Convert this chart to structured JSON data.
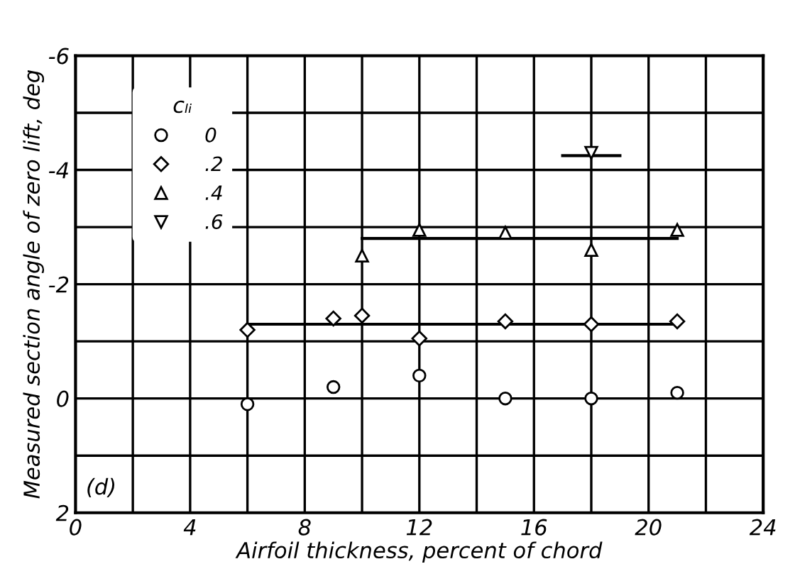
{
  "chart_data": {
    "type": "scatter",
    "xlabel": "Airfoil thickness, percent of chord",
    "ylabel": "Measured section angle of zero lift, deg",
    "legend_title": "cₗᵢ",
    "series": [
      {
        "name": "0",
        "color": "#000000",
        "marker": "circle",
        "x": [
          6,
          9,
          12,
          15,
          18,
          21
        ],
        "values": [
          0.1,
          -0.2,
          -0.4,
          0,
          0,
          -0.1
        ]
      },
      {
        "name": ".2",
        "color": "#000000",
        "marker": "diamond",
        "x": [
          6,
          9,
          10,
          12,
          15,
          18,
          21
        ],
        "values": [
          -1.2,
          -1.4,
          -1.45,
          -1.05,
          -1.35,
          -1.3,
          -1.35
        ]
      },
      {
        "name": ".4",
        "color": "#000000",
        "marker": "triangle",
        "x": [
          10,
          12,
          15,
          18,
          21
        ],
        "values": [
          -2.5,
          -2.95,
          -2.9,
          -2.6,
          -2.95
        ]
      },
      {
        "name": ".6",
        "color": "#000000",
        "marker": "triangle_down",
        "x": [
          18
        ],
        "values": [
          -4.3
        ]
      },
      {
        "type": "line",
        "color": "#000000",
        "x": [
          6,
          21
        ],
        "values": [
          -1.3,
          -1.3
        ]
      },
      {
        "type": "line",
        "color": "#000000",
        "x": [
          10,
          21
        ],
        "values": [
          -2.8,
          -2.8
        ]
      },
      {
        "type": "line",
        "color": "#000000",
        "x": [
          17,
          19
        ],
        "values": [
          -4.25,
          -4.25
        ]
      }
    ],
    "annotations": [
      "(d)"
    ],
    "xlim": [
      0,
      24
    ],
    "xticks": [
      0,
      {
        "value": 2,
        "label": null
      },
      4,
      {
        "value": 6,
        "label": null
      },
      8,
      {
        "value": 10,
        "label": null
      },
      12,
      {
        "value": 14,
        "label": null
      },
      16,
      {
        "value": 18,
        "label": null
      },
      20,
      {
        "value": 22,
        "label": null
      },
      24
    ],
    "ylim": [
      2,
      -6
    ],
    "yticks": [
      2,
      {
        "value": 1,
        "label": null
      },
      0,
      {
        "value": -1,
        "label": null
      },
      -2,
      {
        "value": -3,
        "label": null
      },
      -4,
      {
        "value": -5,
        "label": null
      },
      -6
    ],
    "grid": true,
    "legend": "top left"
  }
}
